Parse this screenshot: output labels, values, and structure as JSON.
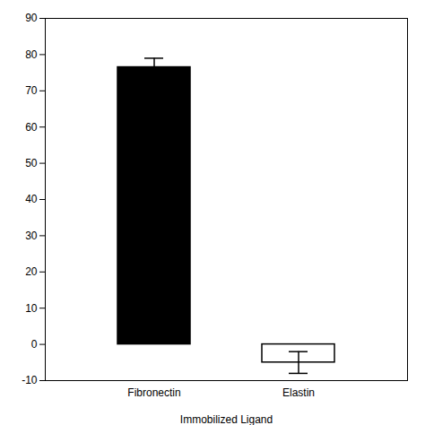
{
  "chart_data": {
    "type": "bar",
    "categories": [
      "Fibronectin",
      "Elastin"
    ],
    "values": [
      76.5,
      -5.0
    ],
    "errors": [
      2.5,
      3.0
    ],
    "colors": [
      "#000000",
      "#ffffff"
    ],
    "xlabel": "Immobilized Ligand",
    "ylim": [
      -10,
      90
    ],
    "yticks": [
      -10,
      0,
      10,
      20,
      30,
      40,
      50,
      60,
      70,
      80,
      90
    ],
    "grid": false
  }
}
